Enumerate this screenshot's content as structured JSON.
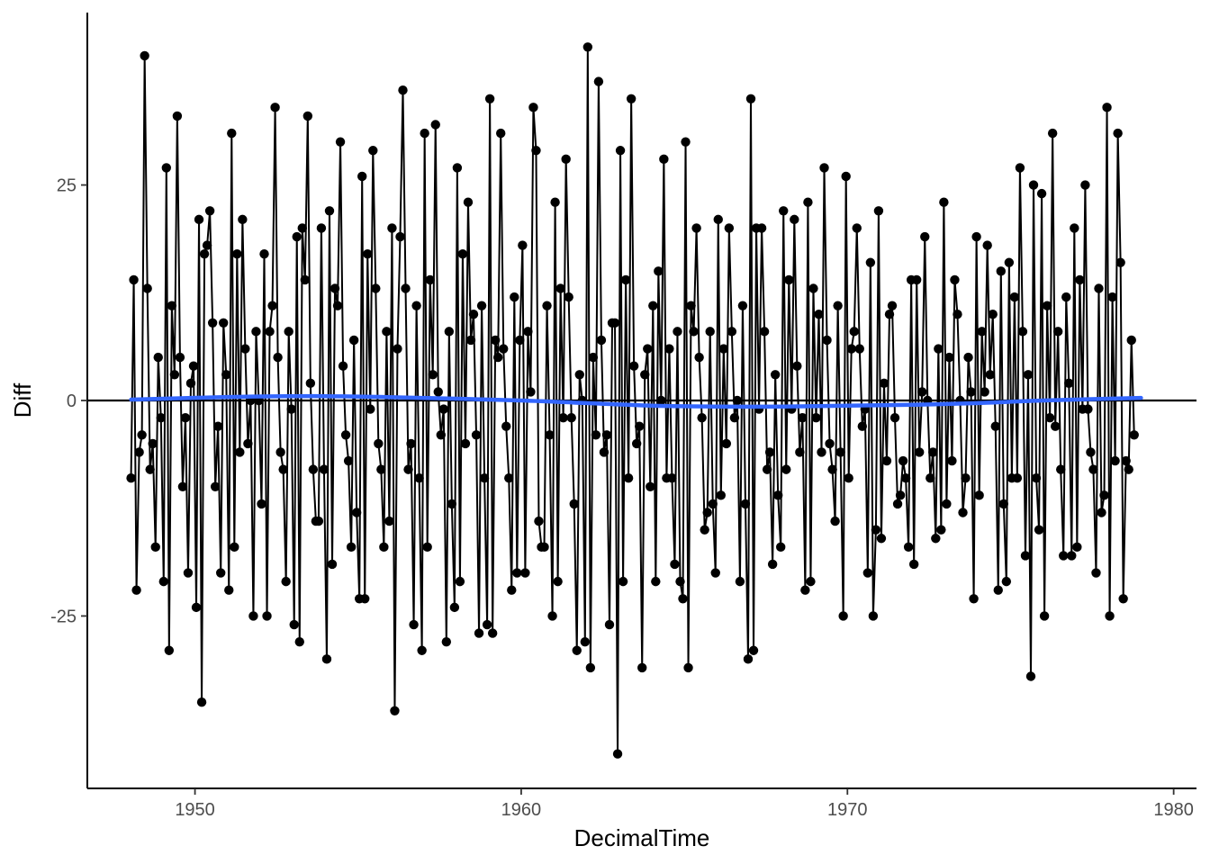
{
  "chart_data": {
    "type": "line",
    "title": "",
    "xlabel": "DecimalTime",
    "ylabel": "Diff",
    "xlim": [
      1946.7,
      1980.7
    ],
    "ylim": [
      -45,
      45
    ],
    "x_ticks": [
      1950,
      1960,
      1970,
      1980
    ],
    "x_tick_labels": [
      "1950",
      "1960",
      "1970",
      "1980"
    ],
    "y_ticks": [
      -25,
      0,
      25
    ],
    "y_tick_labels": [
      "-25",
      "0",
      "25"
    ],
    "grid": false,
    "legend": "none",
    "reference_line": {
      "y": 0,
      "color": "#000000"
    },
    "series": [
      {
        "kind": "points-and-line",
        "color": "#000000",
        "x_start": 1948.04,
        "x_step": 0.08333,
        "y": [
          -9,
          14,
          -22,
          -6,
          -4,
          40,
          13,
          -8,
          -5,
          -17,
          5,
          -2,
          -21,
          27,
          -29,
          11,
          3,
          33,
          5,
          -10,
          -2,
          -20,
          2,
          4,
          -24,
          21,
          -35,
          17,
          18,
          22,
          9,
          -10,
          -3,
          -20,
          9,
          3,
          -22,
          31,
          -17,
          17,
          -6,
          21,
          6,
          -5,
          0,
          -25,
          8,
          0,
          -12,
          17,
          -25,
          8,
          11,
          34,
          5,
          -6,
          -8,
          -21,
          8,
          -1,
          -26,
          19,
          -28,
          20,
          14,
          33,
          2,
          -8,
          -14,
          -14,
          20,
          -8,
          -30,
          22,
          -19,
          13,
          11,
          30,
          4,
          -4,
          -7,
          -17,
          7,
          -13,
          -23,
          26,
          -23,
          17,
          -1,
          29,
          13,
          -5,
          -8,
          -17,
          8,
          -14,
          20,
          -36,
          6,
          19,
          36,
          13,
          -8,
          -5,
          -26,
          11,
          -9,
          -29,
          31,
          -17,
          14,
          3,
          32,
          1,
          -4,
          -1,
          -28,
          8,
          -12,
          -24,
          27,
          -21,
          17,
          -5,
          23,
          7,
          10,
          -4,
          -27,
          11,
          -9,
          -26,
          35,
          -27,
          7,
          5,
          31,
          6,
          -3,
          -9,
          -22,
          12,
          -20,
          7,
          18,
          -20,
          8,
          1,
          34,
          29,
          -14,
          -17,
          -17,
          11,
          -4,
          -25,
          23,
          -21,
          13,
          -2,
          28,
          12,
          -2,
          -12,
          -29,
          3,
          0,
          -28,
          41,
          -31,
          5,
          -4,
          37,
          7,
          -6,
          -4,
          -26,
          9,
          9,
          -41,
          29,
          -21,
          14,
          -9,
          35,
          4,
          -5,
          -3,
          -31,
          3,
          6,
          -10,
          11,
          -21,
          15,
          0,
          28,
          -9,
          6,
          -9,
          -19,
          8,
          -21,
          -23,
          30,
          -31,
          11,
          8,
          20,
          5,
          -2,
          -15,
          -13,
          8,
          -12,
          -20,
          21,
          -11,
          6,
          -5,
          20,
          8,
          -2,
          0,
          -21,
          11,
          -12,
          -30,
          35,
          -29,
          20,
          -1,
          20,
          8,
          -8,
          -6,
          -19,
          3,
          -11,
          -17,
          22,
          -8,
          14,
          -1,
          21,
          4,
          -6,
          -2,
          -22,
          23,
          -21,
          13,
          -2,
          10,
          -6,
          27,
          7,
          -5,
          -8,
          -14,
          11,
          -6,
          -25,
          26,
          -9,
          6,
          8,
          20,
          6,
          -3,
          -1,
          -20,
          16,
          -25,
          -15,
          22,
          -16,
          2,
          -7,
          10,
          11,
          -2,
          -12,
          -11,
          -7,
          -9,
          -17,
          14,
          -19,
          14,
          -6,
          1,
          19,
          0,
          -9,
          -6,
          -16,
          6,
          -15,
          23,
          -12,
          5,
          -7,
          14,
          10,
          0,
          -13,
          -9,
          5,
          1,
          -23,
          19,
          -11,
          8,
          1,
          18,
          3,
          10,
          -3,
          -22,
          15,
          -12,
          -21,
          16,
          -9,
          12,
          -9,
          27,
          8,
          -18,
          3,
          -32,
          25,
          -9,
          -15,
          24,
          -25,
          11,
          -2,
          31,
          -3,
          8,
          -8,
          -18,
          12,
          2,
          -18,
          20,
          -17,
          14,
          -1,
          25,
          -1,
          -6,
          -8,
          -20,
          13,
          -13,
          -11,
          34,
          -25,
          12,
          -7,
          31,
          16,
          -23,
          -7,
          -8,
          7,
          -4
        ]
      },
      {
        "kind": "smooth",
        "color": "#3366ff",
        "x": [
          1948.04,
          1951.0,
          1954.0,
          1957.0,
          1960.0,
          1962.0,
          1964.0,
          1966.0,
          1968.0,
          1970.0,
          1972.0,
          1974.0,
          1976.0,
          1979.0
        ],
        "y": [
          0.1,
          0.4,
          0.5,
          0.3,
          0.0,
          -0.3,
          -0.6,
          -0.7,
          -0.7,
          -0.6,
          -0.5,
          -0.3,
          0.0,
          0.3
        ]
      }
    ]
  }
}
